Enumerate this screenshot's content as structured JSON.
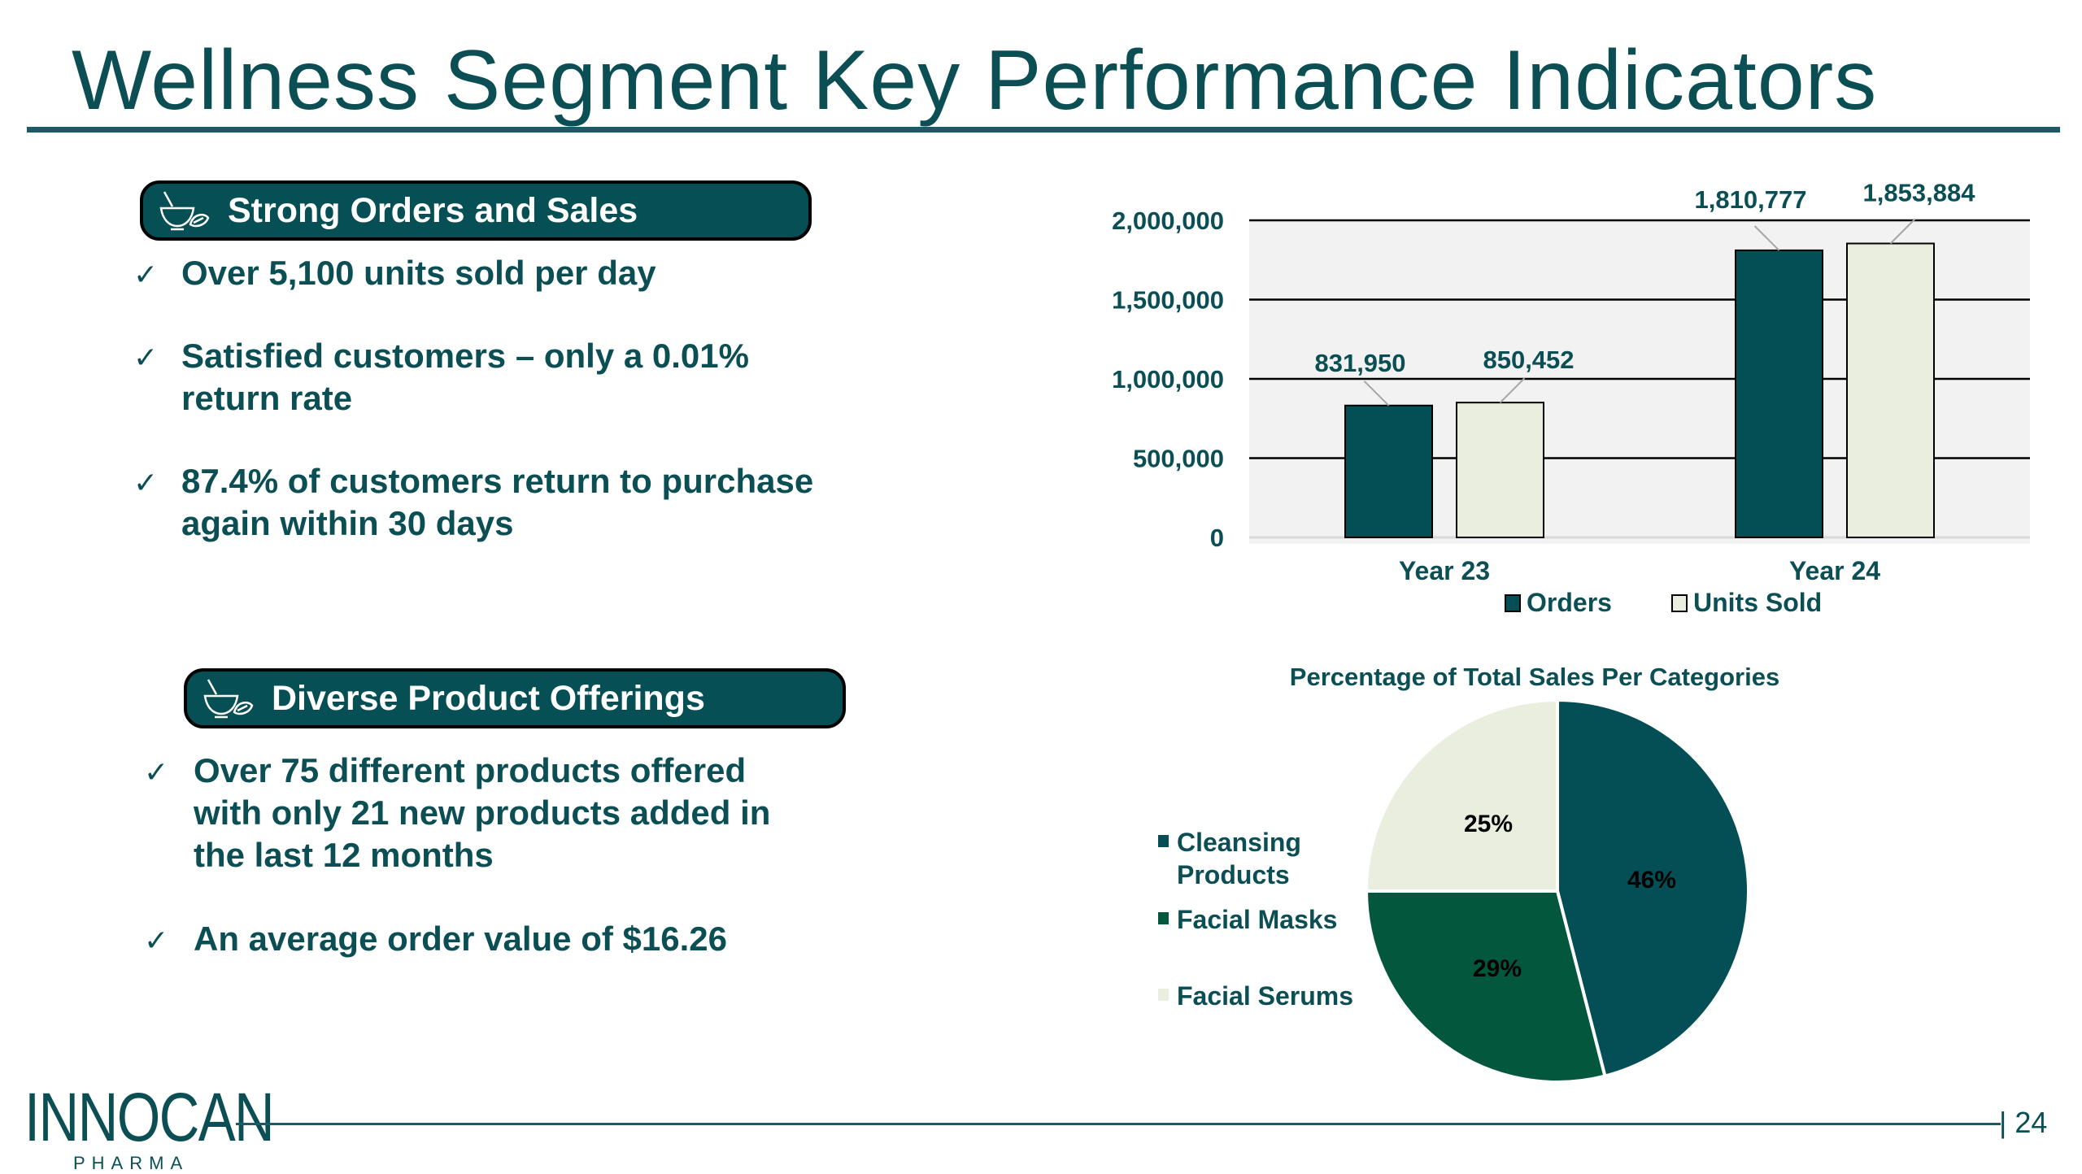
{
  "title": "Wellness Segment Key Performance Indicators",
  "section1": {
    "heading": "Strong Orders and Sales",
    "icon": "mortar-pestle-leaf-icon",
    "bullets": [
      {
        "line1": "Over 5,100 units sold per day",
        "line2": ""
      },
      {
        "line1": "Satisfied customers – only a 0.01%",
        "line2": "return rate"
      },
      {
        "line1": "87.4% of customers return to purchase",
        "line2": "again within 30 days"
      }
    ]
  },
  "section2": {
    "heading": "Diverse Product Offerings",
    "icon": "mortar-pestle-leaf-icon",
    "bullets": [
      {
        "line1": "Over 75 different products offered",
        "line2": "with only 21 new products added in",
        "line3": "the last 12 months"
      },
      {
        "line1": "An average order value of $16.26"
      }
    ]
  },
  "check_glyph": "✓",
  "chart_data": [
    {
      "type": "bar",
      "title": "",
      "categories": [
        "Year 23",
        "Year 24"
      ],
      "series": [
        {
          "name": "Orders",
          "values": [
            831950,
            1810777
          ],
          "labels": [
            "831,950",
            "1,810,777"
          ],
          "color": "#044e55"
        },
        {
          "name": "Units Sold",
          "values": [
            850452,
            1853884
          ],
          "labels": [
            "850,452",
            "1,853,884"
          ],
          "color": "#eaeedf"
        }
      ],
      "ylim": [
        0,
        2000000
      ],
      "yticks": [
        "0",
        "500,000",
        "1,000,000",
        "1,500,000",
        "2,000,000"
      ],
      "grid": true,
      "legend": "bottom",
      "plot_bg": "#f2f2f2"
    },
    {
      "type": "pie",
      "title": "Percentage of Total Sales Per Categories",
      "slices": [
        {
          "name": "Cleansing Products",
          "value": 46,
          "label": "46%",
          "color": "#044e55"
        },
        {
          "name": "Facial Masks",
          "value": 29,
          "label": "29%",
          "color": "#03573d"
        },
        {
          "name": "Facial Serums",
          "value": 25,
          "label": "25%",
          "color": "#eaeedf"
        }
      ],
      "legend": "left"
    }
  ],
  "footer": {
    "logo": "INNOCAN",
    "logo_sub": "PHARMA",
    "page_number": "| 24"
  },
  "colors": {
    "brand": "#0b4f55",
    "pill_bg": "#064f54"
  }
}
